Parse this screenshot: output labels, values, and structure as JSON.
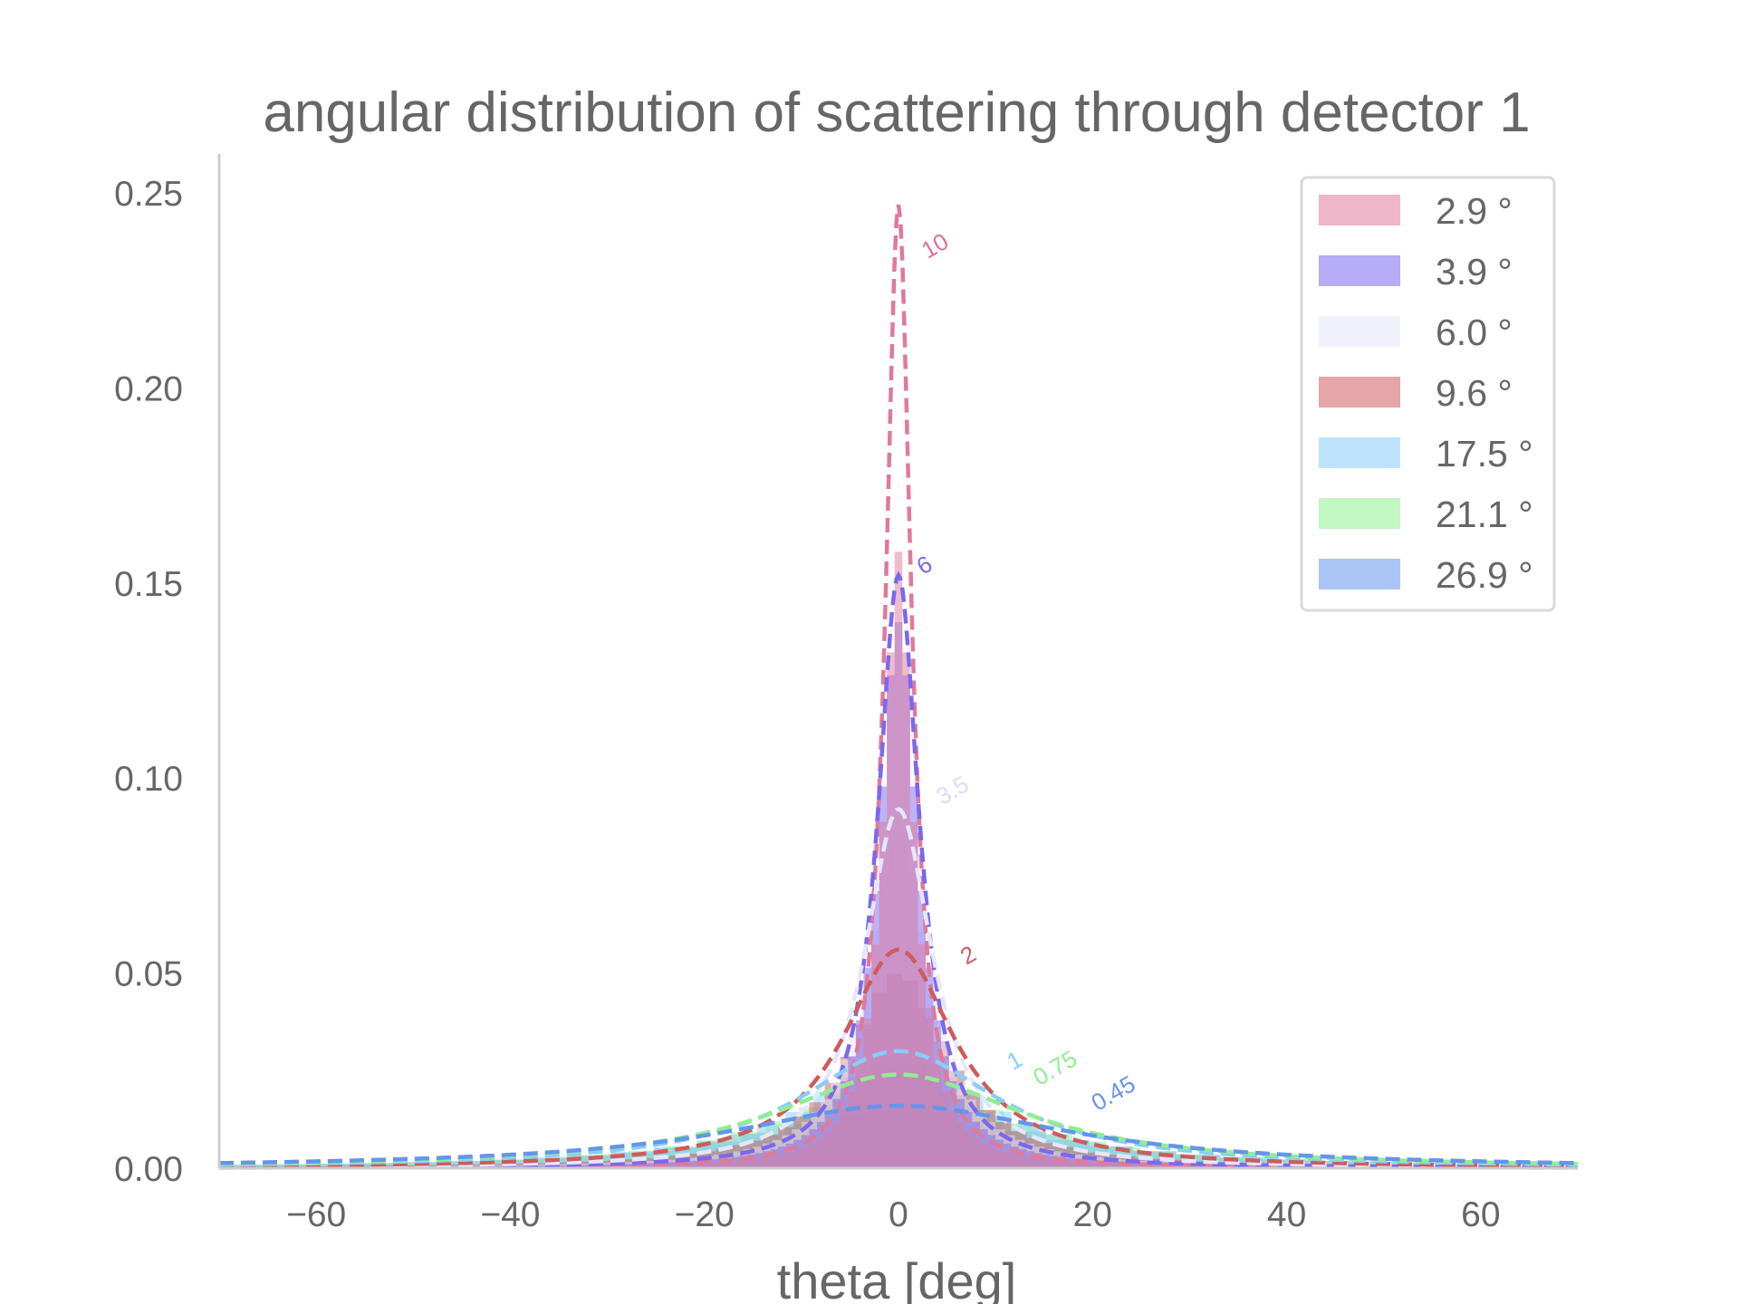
{
  "chart_data": {
    "type": "area",
    "title": "angular distribution of scattering through detector 1",
    "xlabel": "theta [deg]",
    "ylabel": "",
    "xlim": [
      -70,
      70
    ],
    "ylim": [
      0,
      0.26
    ],
    "xticks": [
      -60,
      -40,
      -20,
      0,
      20,
      40,
      60
    ],
    "yticks": [
      0.0,
      0.05,
      0.1,
      0.15,
      0.2,
      0.25
    ],
    "xtick_labels": [
      "−60",
      "−40",
      "−20",
      "0",
      "20",
      "40",
      "60"
    ],
    "ytick_labels": [
      "0.00",
      "0.05",
      "0.10",
      "0.15",
      "0.20",
      "0.25"
    ],
    "grid": false,
    "legend_position": "top-right",
    "series": [
      {
        "name": "2.9°",
        "legend": "2.9 °",
        "color": "#e07a9a",
        "width": 2.9,
        "peak": 0.158,
        "annotation": "10",
        "curve_peak": 0.247,
        "curve_width": 1.6
      },
      {
        "name": "3.9°",
        "legend": "3.9 °",
        "color": "#7b68ee",
        "width": 3.9,
        "peak": 0.14,
        "annotation": "6",
        "curve_peak": 0.152,
        "curve_width": 2.6
      },
      {
        "name": "6.0°",
        "legend": "6.0 °",
        "color": "#e6e6fa",
        "width": 6.0,
        "peak": 0.088,
        "annotation": "3.5",
        "curve_peak": 0.092,
        "curve_width": 4.3
      },
      {
        "name": "9.6°",
        "legend": "9.6 °",
        "color": "#cd5c5c",
        "width": 9.6,
        "peak": 0.05,
        "annotation": "2",
        "curve_peak": 0.056,
        "curve_width": 7.0
      },
      {
        "name": "17.5°",
        "legend": "17.5 °",
        "color": "#87cefa",
        "width": 17.5,
        "peak": 0.027,
        "annotation": "1",
        "curve_peak": 0.03,
        "curve_width": 12.5
      },
      {
        "name": "21.1°",
        "legend": "21.1 °",
        "color": "#90ee90",
        "width": 21.1,
        "peak": 0.022,
        "annotation": "0.75",
        "curve_peak": 0.024,
        "curve_width": 15.5
      },
      {
        "name": "26.9°",
        "legend": "26.9 °",
        "color": "#6495ed",
        "width": 26.9,
        "peak": 0.015,
        "annotation": "0.45",
        "curve_peak": 0.016,
        "curve_width": 21.0
      }
    ],
    "annotations": [
      {
        "text": "10",
        "x": 3.0,
        "y": 0.233,
        "color": "#db7093"
      },
      {
        "text": "6",
        "x": 2.5,
        "y": 0.152,
        "color": "#7b68ee"
      },
      {
        "text": "3.5",
        "x": 4.5,
        "y": 0.093,
        "color": "#dcdcf5"
      },
      {
        "text": "2",
        "x": 7.0,
        "y": 0.052,
        "color": "#cd5c5c"
      },
      {
        "text": "1",
        "x": 11.8,
        "y": 0.025,
        "color": "#87cefa"
      },
      {
        "text": "0.75",
        "x": 14.5,
        "y": 0.021,
        "color": "#90ee90"
      },
      {
        "text": "0.45",
        "x": 20.5,
        "y": 0.0145,
        "color": "#6495ed"
      }
    ]
  }
}
